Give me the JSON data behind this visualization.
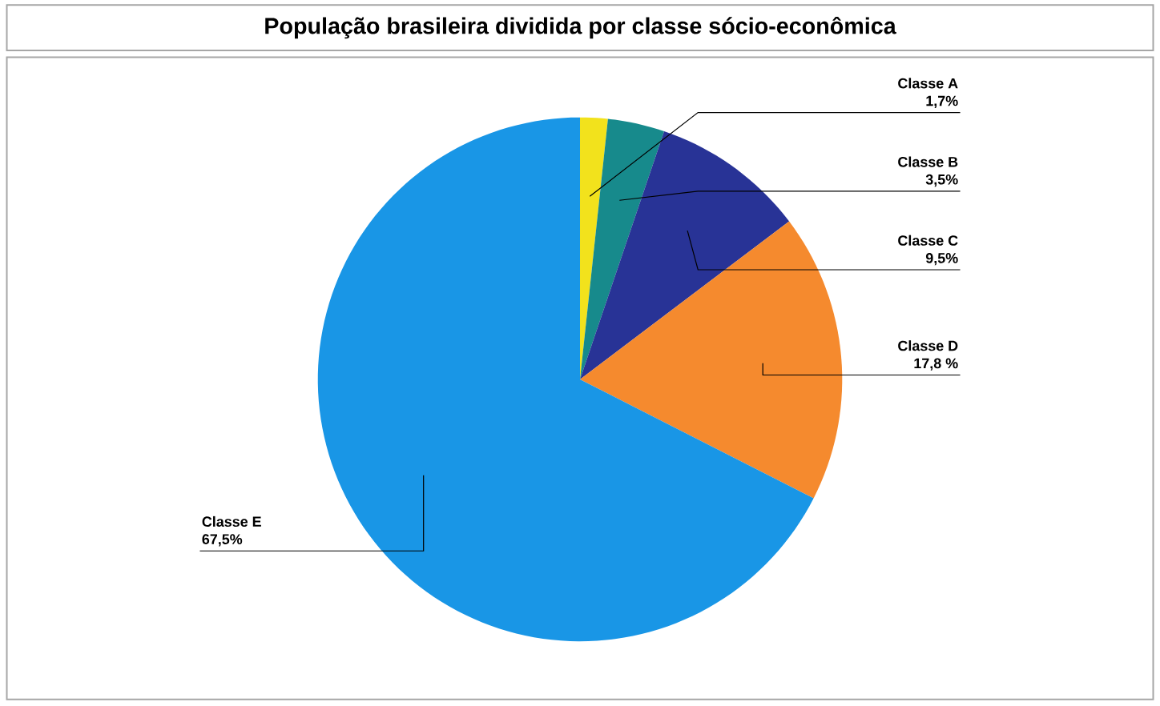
{
  "chart_data": {
    "type": "pie",
    "title": "População brasileira dividida por classe sócio-econômica",
    "categories": [
      "Classe A",
      "Classe B",
      "Classe C",
      "Classe D",
      "Classe E"
    ],
    "values": [
      1.7,
      3.5,
      9.5,
      17.8,
      67.5
    ],
    "value_labels": [
      "1,7%",
      "3,5%",
      "9,5%",
      "17,8 %",
      "67,5%"
    ],
    "colors": [
      "#f2e21c",
      "#178a8c",
      "#283396",
      "#f58a2e",
      "#1996e6"
    ]
  }
}
